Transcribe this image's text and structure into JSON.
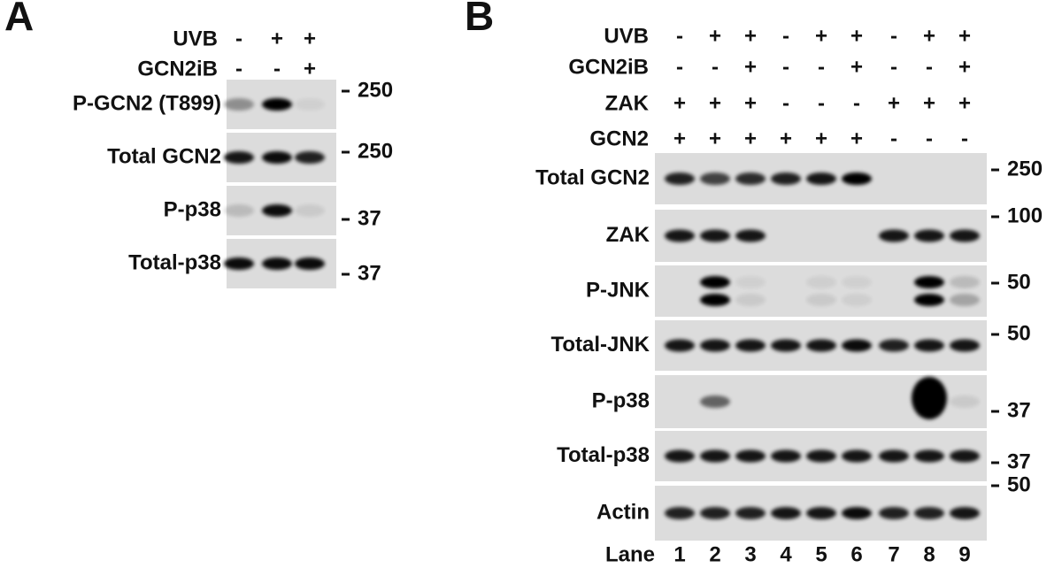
{
  "panel_a": {
    "label": "A",
    "conditions": [
      {
        "name": "UVB",
        "values": [
          "-",
          "+",
          "+"
        ]
      },
      {
        "name": "GCN2iB",
        "values": [
          "-",
          "-",
          "+"
        ]
      }
    ],
    "blots": [
      {
        "name": "P-GCN2 (T899)",
        "marker": "250"
      },
      {
        "name": "Total GCN2",
        "marker": "250"
      },
      {
        "name": "P-p38",
        "marker": "37"
      },
      {
        "name": "Total-p38",
        "marker": "37"
      }
    ]
  },
  "panel_b": {
    "label": "B",
    "conditions": [
      {
        "name": "UVB",
        "values": [
          "-",
          "+",
          "+",
          "-",
          "+",
          "+",
          "-",
          "+",
          "+"
        ]
      },
      {
        "name": "GCN2iB",
        "values": [
          "-",
          "-",
          "+",
          "-",
          "-",
          "+",
          "-",
          "-",
          "+"
        ]
      },
      {
        "name": "ZAK",
        "values": [
          "+",
          "+",
          "+",
          "-",
          "-",
          "-",
          "+",
          "+",
          "+"
        ]
      },
      {
        "name": "GCN2",
        "values": [
          "+",
          "+",
          "+",
          "+",
          "+",
          "+",
          "-",
          "-",
          "-"
        ]
      }
    ],
    "blots": [
      {
        "name": "Total GCN2",
        "marker": "250"
      },
      {
        "name": "ZAK",
        "marker": "100"
      },
      {
        "name": "P-JNK",
        "marker": "50"
      },
      {
        "name": "Total-JNK",
        "marker": "50"
      },
      {
        "name": "P-p38",
        "marker": "37"
      },
      {
        "name": "Total-p38",
        "marker": "37"
      },
      {
        "name": "Actin",
        "marker": "50"
      }
    ],
    "lane_label": "Lane",
    "lanes": [
      "1",
      "2",
      "3",
      "4",
      "5",
      "6",
      "7",
      "8",
      "9"
    ]
  }
}
